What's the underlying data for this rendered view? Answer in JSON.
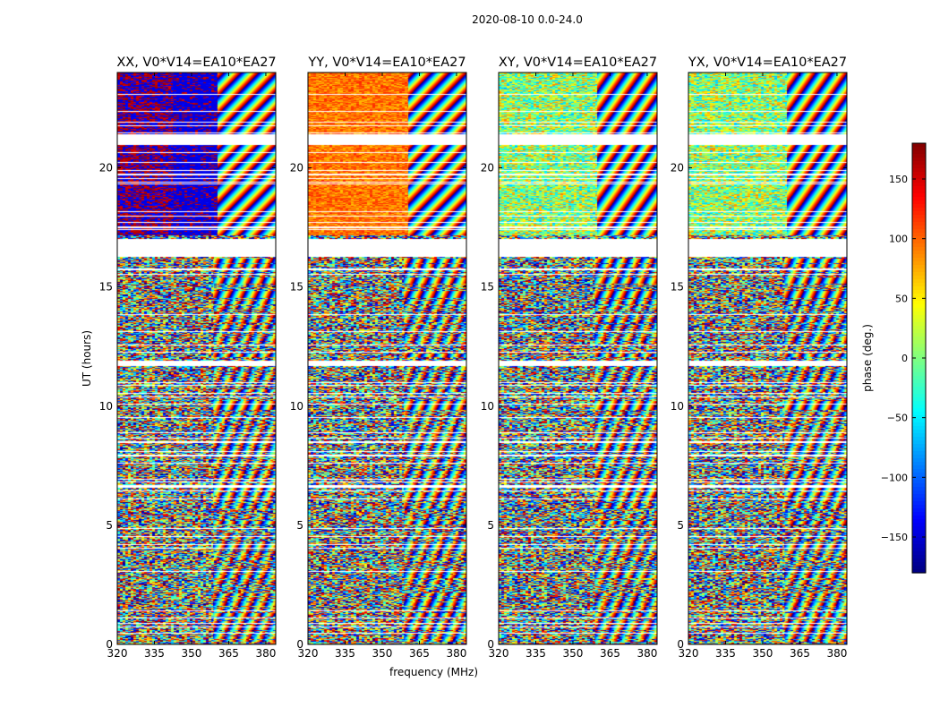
{
  "chart_data": {
    "type": "heatmap",
    "suptitle": "2020-08-10 0.0-24.0",
    "panels": [
      {
        "title": "XX, V0*V14=EA10*EA27",
        "pol": "XX",
        "ylabel": "UT (hours)",
        "xlabel": ""
      },
      {
        "title": "YY, V0*V14=EA10*EA27",
        "pol": "YY",
        "ylabel": "",
        "xlabel": "frequency (MHz)"
      },
      {
        "title": "XY, V0*V14=EA10*EA27",
        "pol": "XY",
        "ylabel": "",
        "xlabel": ""
      },
      {
        "title": "YX, V0*V14=EA10*EA27",
        "pol": "YX",
        "ylabel": "",
        "xlabel": ""
      }
    ],
    "x_range": [
      320,
      384
    ],
    "x_ticks": [
      320,
      335,
      350,
      365,
      380
    ],
    "x_tick_labels": [
      "320",
      "335",
      "350",
      "365",
      "380"
    ],
    "y_range": [
      0,
      24
    ],
    "y_ticks": [
      0,
      5,
      10,
      15,
      20
    ],
    "y_tick_labels": [
      "0",
      "5",
      "10",
      "15",
      "20"
    ],
    "colorbar": {
      "label": "phase (deg.)",
      "range": [
        -180,
        180
      ],
      "ticks": [
        -150,
        -100,
        -50,
        0,
        50,
        100,
        150
      ],
      "tick_labels": [
        "−150",
        "−100",
        "−50",
        "0",
        "50",
        "100",
        "150"
      ],
      "colormap": "jet"
    },
    "data_gaps_ut_hours": [
      [
        21.4,
        21.0
      ],
      [
        17.0,
        16.3
      ],
      [
        11.9,
        11.7
      ]
    ],
    "grid": false
  }
}
